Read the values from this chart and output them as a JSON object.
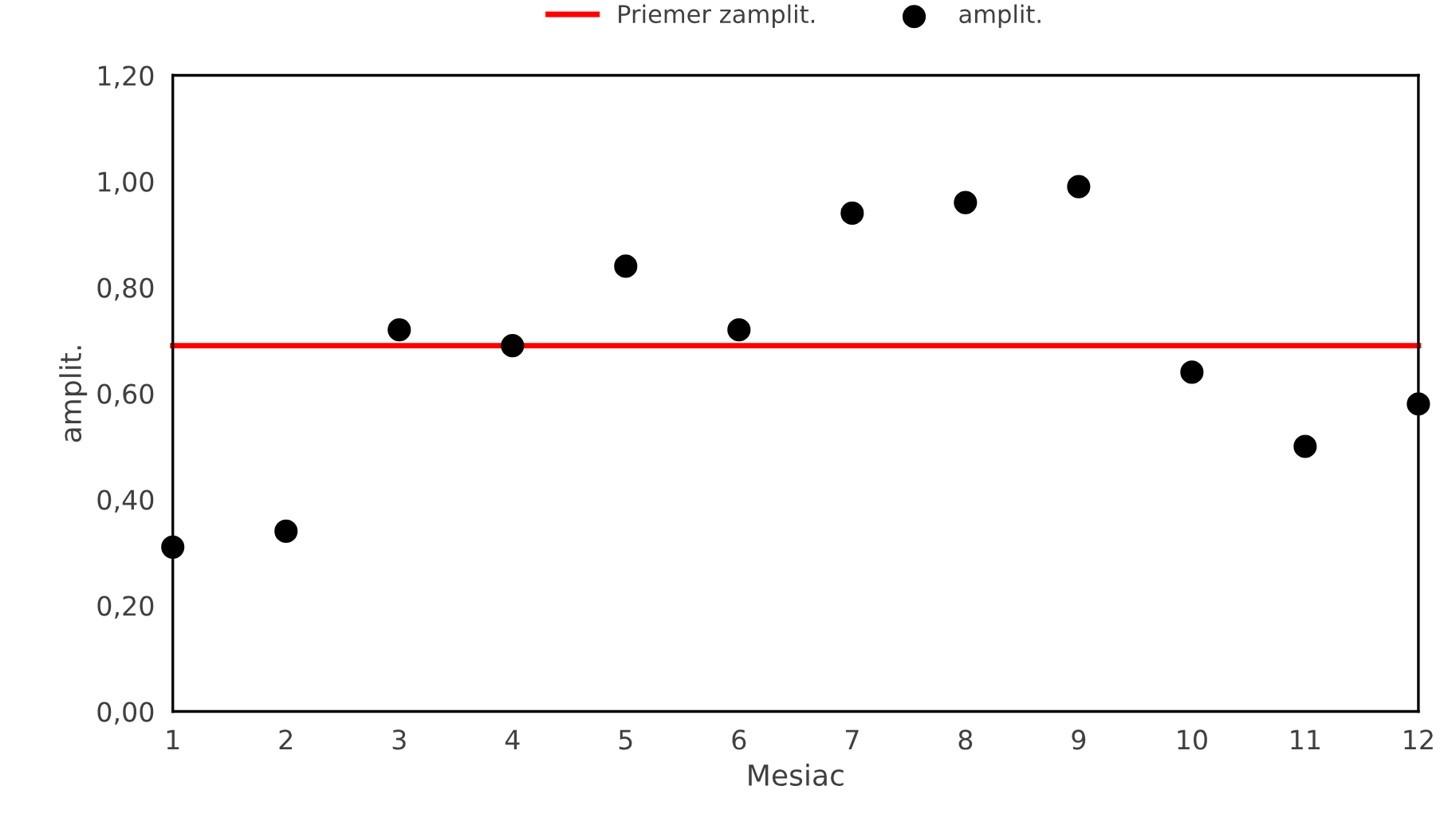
{
  "chart_data": {
    "type": "scatter",
    "xlabel": "Mesiac",
    "ylabel": "amplit.",
    "x": [
      1,
      2,
      3,
      4,
      5,
      6,
      7,
      8,
      9,
      10,
      11,
      12
    ],
    "series": [
      {
        "name": "Priemer zamplit.",
        "type": "line",
        "color": "#ff0000",
        "values": [
          0.69,
          0.69,
          0.69,
          0.69,
          0.69,
          0.69,
          0.69,
          0.69,
          0.69,
          0.69,
          0.69,
          0.69
        ]
      },
      {
        "name": "amplit.",
        "color": "#000000",
        "marker": "circle",
        "values": [
          0.31,
          0.34,
          0.72,
          0.69,
          0.84,
          0.72,
          0.94,
          0.96,
          0.99,
          0.64,
          0.5,
          0.58
        ]
      }
    ],
    "xlim": [
      1,
      12
    ],
    "xticks": [
      1,
      2,
      3,
      4,
      5,
      6,
      7,
      8,
      9,
      10,
      11,
      12
    ],
    "ylim": [
      0,
      1.2
    ],
    "yticks": [
      {
        "value": 0,
        "label": "0,00"
      },
      {
        "value": 0.2,
        "label": "0,20"
      },
      {
        "value": 0.4,
        "label": "0,40"
      },
      {
        "value": 0.6,
        "label": "0,60"
      },
      {
        "value": 0.8,
        "label": "0,80"
      },
      {
        "value": 1.0,
        "label": "1,00"
      },
      {
        "value": 1.2,
        "label": "1,20"
      }
    ],
    "grid": false,
    "legend": "top"
  }
}
